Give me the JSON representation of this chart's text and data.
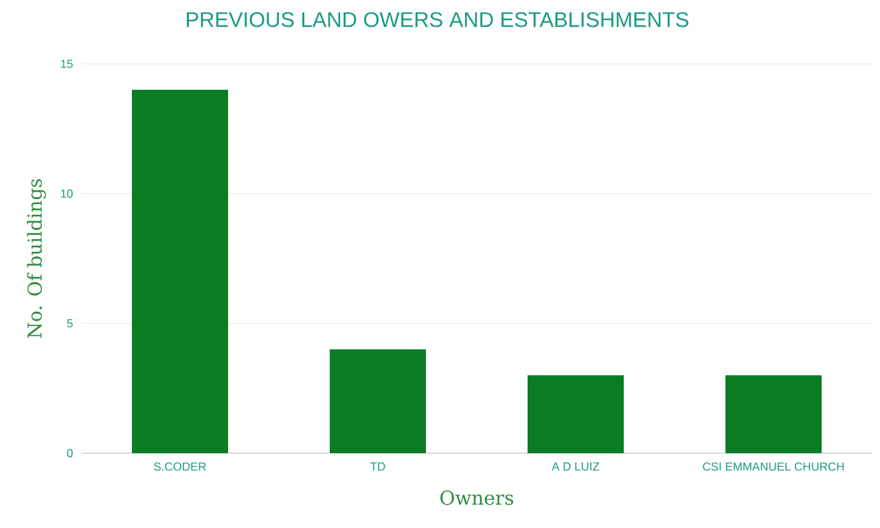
{
  "chart_data": {
    "type": "bar",
    "title": "PREVIOUS LAND OWERS AND ESTABLISHMENTS",
    "xlabel": "Owners",
    "ylabel": "No. Of buildings",
    "categories": [
      "S.CODER",
      "TD",
      "A D LUIZ",
      "CSI EMMANUEL CHURCH"
    ],
    "values": [
      14,
      4,
      3,
      3
    ],
    "color": "#0a7c24",
    "ylim": [
      0,
      15
    ],
    "yticks": [
      0,
      5,
      10,
      15
    ],
    "grid": "y"
  }
}
